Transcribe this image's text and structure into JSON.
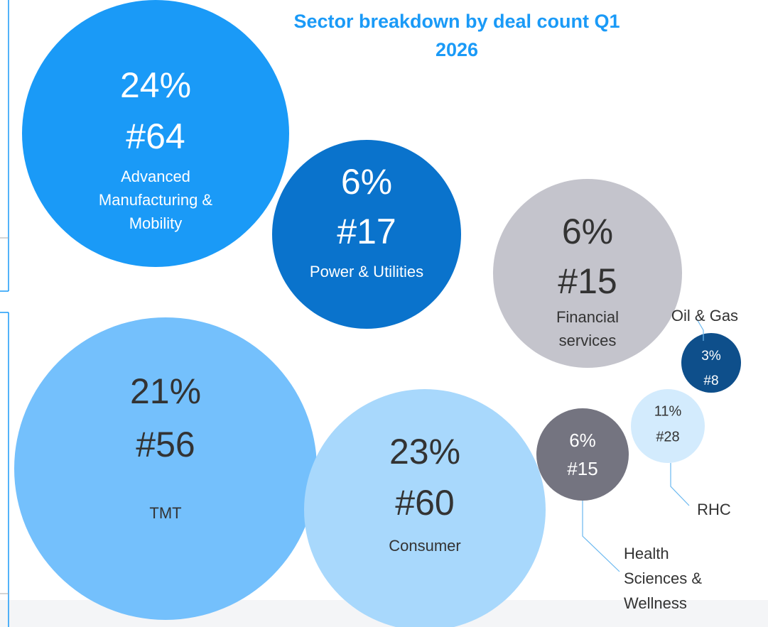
{
  "chart_data": {
    "type": "bubble",
    "title": "Sector breakdown by deal count Q1 2026",
    "categories": [
      "Advanced Manufacturing & Mobility",
      "Power & Utilities",
      "Financial services",
      "TMT",
      "Consumer",
      "Health Sciences & Wellness",
      "RHC",
      "Oil & Gas"
    ],
    "values": [
      24,
      6,
      6,
      21,
      23,
      6,
      11,
      3
    ],
    "value_labels": [
      "24%",
      "6%",
      "6%",
      "21%",
      "23%",
      "6%",
      "11%",
      "3%"
    ],
    "counts": [
      64,
      17,
      15,
      56,
      60,
      15,
      28,
      8
    ],
    "count_labels": [
      "#64",
      "#17",
      "#15",
      "#56",
      "#60",
      "#15",
      "#28",
      "#8"
    ],
    "colors": [
      "#1a9af7",
      "#0a73cc",
      "#c4c4cc",
      "#74c0fc",
      "#a8d8fc",
      "#747480",
      "#d3ebfd",
      "#0e4f8b"
    ]
  }
}
